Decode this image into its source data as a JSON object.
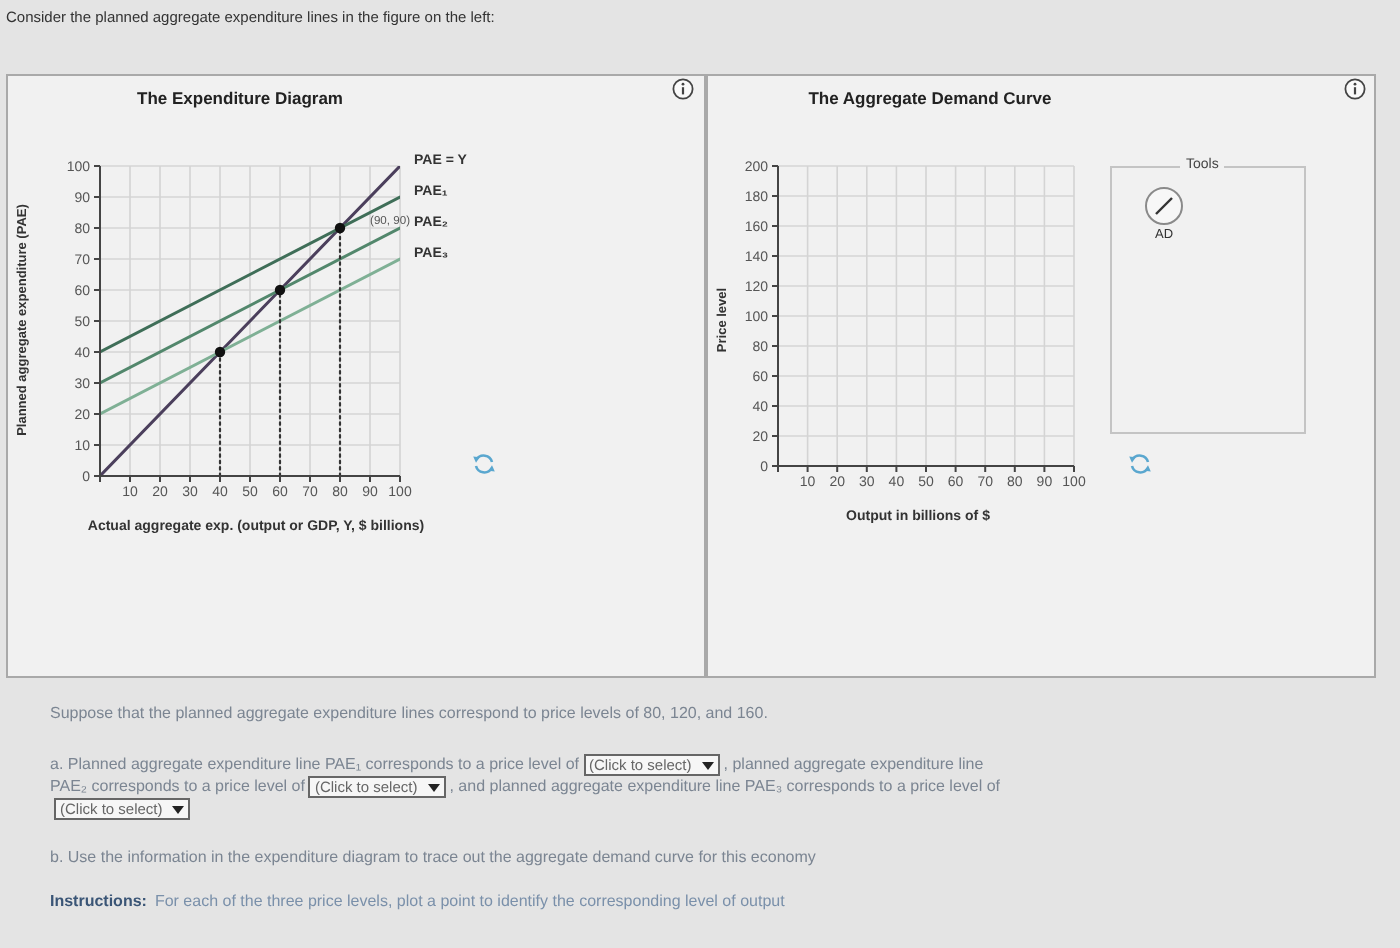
{
  "chart_data": [
    {
      "type": "other",
      "annotations": [
        "Consider the planned aggregate expenditure lines in the figure on the left:"
      ]
    },
    {
      "type": "line",
      "title": "The Expenditure Diagram",
      "xlabel": "Actual aggregate exp. (output or GDP, Y, $ billions)",
      "ylabel": "Planned aggregate expenditure (PAE)",
      "xlim": [
        0,
        100
      ],
      "ylim": [
        0,
        100
      ],
      "xticks": [
        {
          "value": 0,
          "label": null
        },
        10,
        20,
        30,
        40,
        50,
        60,
        70,
        80,
        90,
        100
      ],
      "yticks": [
        0,
        10,
        20,
        30,
        40,
        50,
        60,
        70,
        80,
        90,
        100
      ],
      "grid": true,
      "marker": "none",
      "line_style": "solid",
      "annotations": [
        "(90, 90)"
      ],
      "series": [
        {
          "name": "PAE = Y",
          "color": "#4b3f5c",
          "x": [
            0,
            100
          ],
          "values": [
            0,
            100
          ]
        },
        {
          "name": "PAE₁",
          "color": "#3f6e58",
          "x": [
            0,
            100
          ],
          "values": [
            40,
            90
          ]
        },
        {
          "name": "PAE₂",
          "color": "#52876c",
          "x": [
            0,
            100
          ],
          "values": [
            30,
            80
          ]
        },
        {
          "name": "PAE₃",
          "color": "#7fb095",
          "x": [
            0,
            100
          ],
          "values": [
            20,
            70
          ]
        },
        {
          "type": "line",
          "line_style": "dotted",
          "color": "#333333",
          "x": [
            40,
            40
          ],
          "values": [
            0,
            40
          ]
        },
        {
          "type": "line",
          "line_style": "dotted",
          "color": "#333333",
          "x": [
            60,
            60
          ],
          "values": [
            0,
            60
          ]
        },
        {
          "type": "line",
          "line_style": "dotted",
          "color": "#333333",
          "x": [
            80,
            80
          ],
          "values": [
            0,
            80
          ]
        },
        {
          "type": "scatter",
          "marker": "circle",
          "color": "#111111",
          "x": [
            40,
            60,
            80
          ],
          "values": [
            40,
            60,
            80
          ]
        }
      ]
    },
    {
      "type": "line",
      "title": "The Aggregate Demand Curve",
      "xlabel": "Output in billions of $",
      "ylabel": "Price level",
      "xlim": [
        0,
        100
      ],
      "ylim": [
        0,
        200
      ],
      "xticks": [
        {
          "value": 0,
          "label": null
        },
        10,
        20,
        30,
        40,
        50,
        60,
        70,
        80,
        90,
        100
      ],
      "yticks": [
        0,
        20,
        40,
        60,
        80,
        100,
        120,
        140,
        160,
        180,
        200
      ],
      "grid": true,
      "annotations": [
        "Tools",
        "AD"
      ]
    },
    {
      "type": "other",
      "annotations": [
        "Suppose that the planned aggregate expenditure lines correspond to price levels of 80, 120, and 160.",
        "a. Planned aggregate expenditure line PAE₁ corresponds to a price level of",
        "(Click to select)",
        ", planned aggregate expenditure line",
        "PAE₂ corresponds to a price level of",
        "(Click to select)",
        ", and planned aggregate expenditure line PAE₃ corresponds to a price level of",
        "(Click to select)",
        "b. Use the information in the expenditure diagram to trace out the aggregate demand curve for this economy",
        "Instructions:",
        "For each of the three price levels, plot a point to identify the corresponding level of output"
      ]
    }
  ]
}
